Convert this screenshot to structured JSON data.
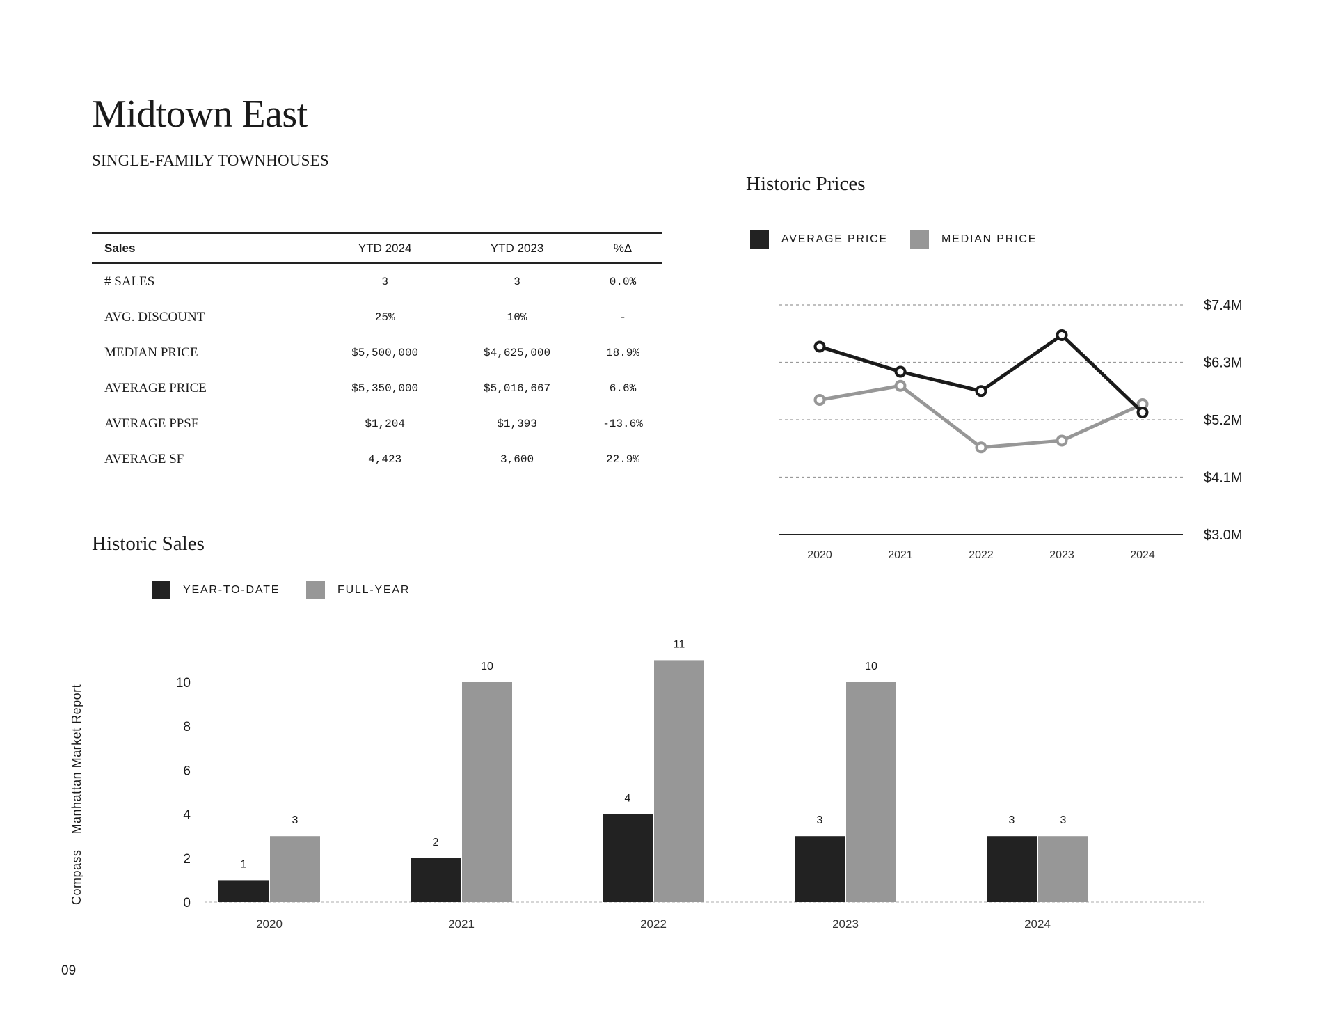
{
  "header": {
    "title": "Midtown East",
    "subtitle": "SINGLE-FAMILY TOWNHOUSES"
  },
  "sales_table": {
    "columns": [
      "Sales",
      "YTD 2024",
      "YTD 2023",
      "%Δ"
    ],
    "rows": [
      {
        "label": "# SALES",
        "ytd2024": "3",
        "ytd2023": "3",
        "change": "0.0%"
      },
      {
        "label": "AVG. DISCOUNT",
        "ytd2024": "25%",
        "ytd2023": "10%",
        "change": "-"
      },
      {
        "label": "MEDIAN PRICE",
        "ytd2024": "$5,500,000",
        "ytd2023": "$4,625,000",
        "change": "18.9%"
      },
      {
        "label": "AVERAGE PRICE",
        "ytd2024": "$5,350,000",
        "ytd2023": "$5,016,667",
        "change": "6.6%"
      },
      {
        "label": "AVERAGE PPSF",
        "ytd2024": "$1,204",
        "ytd2023": "$1,393",
        "change": "-13.6%"
      },
      {
        "label": "AVERAGE SF",
        "ytd2024": "4,423",
        "ytd2023": "3,600",
        "change": "22.9%"
      }
    ]
  },
  "prices_section": {
    "title": "Historic Prices",
    "legend": [
      {
        "label": "AVERAGE PRICE",
        "color": "#222222"
      },
      {
        "label": "MEDIAN PRICE",
        "color": "#979797"
      }
    ]
  },
  "sales_section": {
    "title": "Historic Sales",
    "legend": [
      {
        "label": "YEAR-TO-DATE",
        "color": "#222222"
      },
      {
        "label": "FULL-YEAR",
        "color": "#979797"
      }
    ]
  },
  "footer": {
    "side_label_brand": "Compass",
    "side_label_report": "Manhattan Market Report",
    "page_number": "09"
  },
  "chart_data": [
    {
      "type": "line",
      "title": "Historic Prices",
      "x": [
        "2020",
        "2021",
        "2022",
        "2023",
        "2024"
      ],
      "series": [
        {
          "name": "AVERAGE PRICE",
          "color": "#1a1a1a",
          "values": [
            6.6,
            6.12,
            5.75,
            6.82,
            5.34
          ]
        },
        {
          "name": "MEDIAN PRICE",
          "color": "#979797",
          "values": [
            5.58,
            5.85,
            4.67,
            4.8,
            5.5
          ]
        }
      ],
      "ylim": [
        3.0,
        7.4
      ],
      "yticks": [
        3.0,
        4.1,
        5.2,
        6.3,
        7.4
      ],
      "ytick_labels": [
        "$3.0M",
        "$4.1M",
        "$5.2M",
        "$6.3M",
        "$7.4M"
      ],
      "grid": true,
      "legend": "top-left"
    },
    {
      "type": "bar",
      "title": "Historic Sales",
      "categories": [
        "2020",
        "2021",
        "2022",
        "2023",
        "2024"
      ],
      "series": [
        {
          "name": "YEAR-TO-DATE",
          "color": "#222222",
          "values": [
            1,
            2,
            4,
            3,
            3
          ]
        },
        {
          "name": "FULL-YEAR",
          "color": "#979797",
          "values": [
            3,
            10,
            11,
            10,
            3
          ]
        }
      ],
      "ylim": [
        0,
        11
      ],
      "yticks": [
        0,
        2,
        4,
        6,
        8,
        10
      ],
      "legend": "top-left"
    }
  ]
}
